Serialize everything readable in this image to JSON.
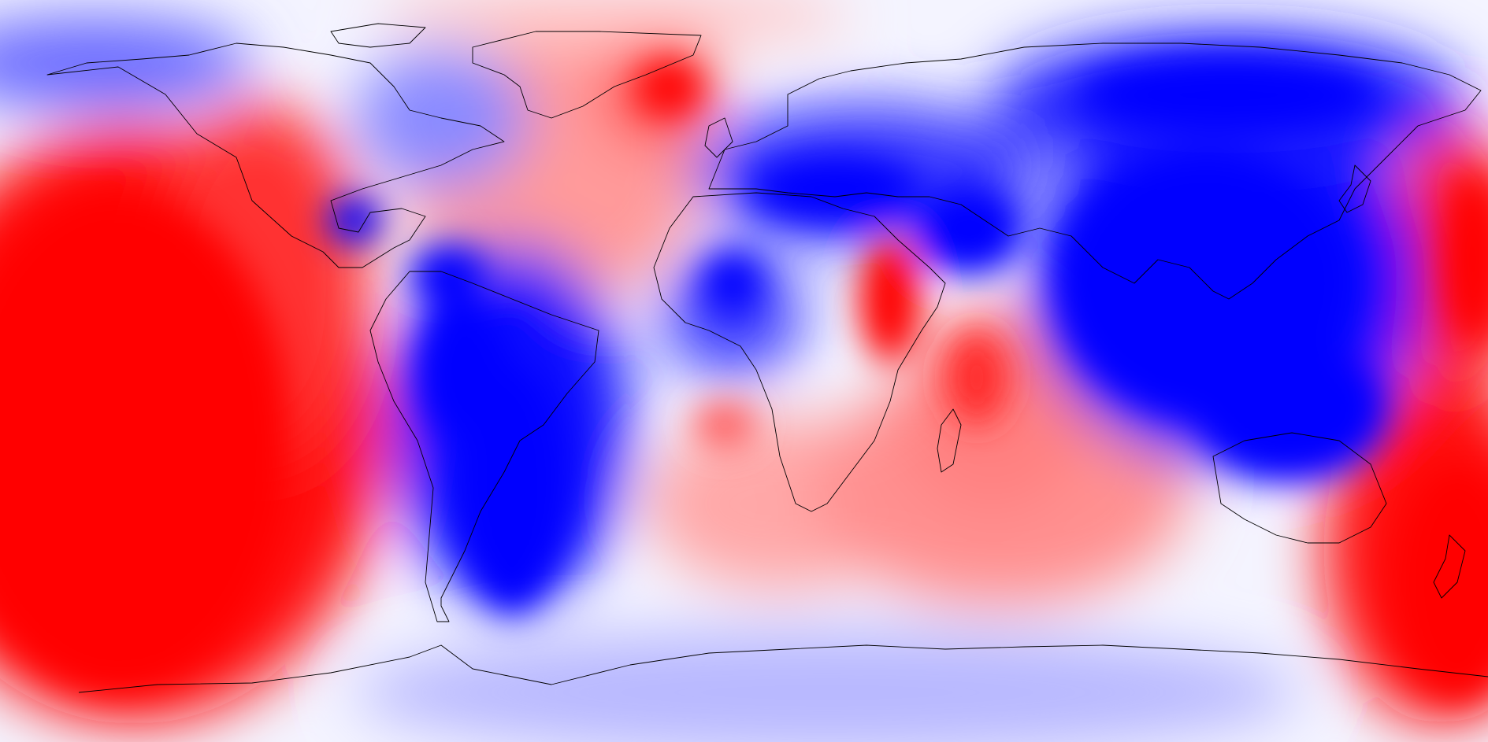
{
  "map": {
    "projection": "equirectangular",
    "coverage": "global",
    "colormap": {
      "positive": "#ff0000",
      "neutral": "#ffffff",
      "negative": "#0000ff"
    },
    "background": "#f7f7ff",
    "coastline_color": "#000000",
    "regions": [
      {
        "area": "central-south-pacific",
        "sign": "positive",
        "strength": 1.0
      },
      {
        "area": "greenland-north-atlantic",
        "sign": "positive",
        "strength": 0.85
      },
      {
        "area": "east-africa",
        "sign": "positive",
        "strength": 0.9
      },
      {
        "area": "western-pacific-east-of-japan",
        "sign": "positive",
        "strength": 0.9
      },
      {
        "area": "new-zealand-southwest-pacific",
        "sign": "positive",
        "strength": 1.0
      },
      {
        "area": "south-indian-ocean",
        "sign": "positive",
        "strength": 0.45
      },
      {
        "area": "south-atlantic",
        "sign": "positive",
        "strength": 0.4
      },
      {
        "area": "arctic-pacific-rim",
        "sign": "positive",
        "strength": 0.35
      },
      {
        "area": "asia-indian-ocean-australia",
        "sign": "negative",
        "strength": 1.0
      },
      {
        "area": "siberia",
        "sign": "negative",
        "strength": 0.95
      },
      {
        "area": "europe-mediterranean",
        "sign": "negative",
        "strength": 0.8
      },
      {
        "area": "south-america",
        "sign": "negative",
        "strength": 1.0
      },
      {
        "area": "west-africa",
        "sign": "negative",
        "strength": 0.75
      },
      {
        "area": "gulf-of-mexico",
        "sign": "negative",
        "strength": 0.6
      },
      {
        "area": "hudson-bay-labrador",
        "sign": "negative",
        "strength": 0.45
      },
      {
        "area": "alaska-arctic",
        "sign": "negative",
        "strength": 0.4
      },
      {
        "area": "antarctica",
        "sign": "negative",
        "strength": 0.3
      }
    ]
  }
}
